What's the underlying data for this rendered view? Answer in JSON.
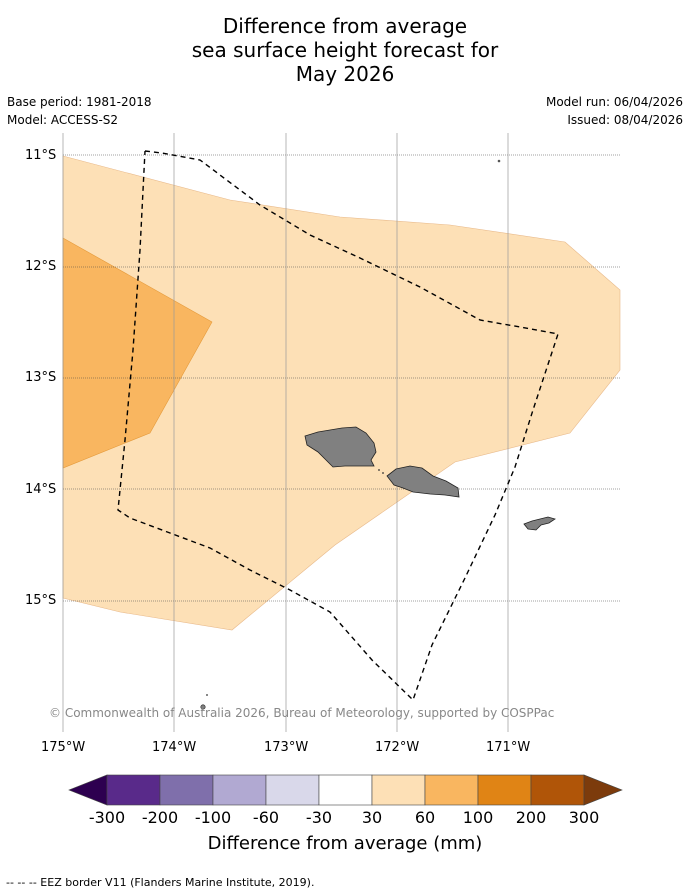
{
  "title": {
    "line1": "Difference from average",
    "line2": "sea surface height forecast for",
    "line3": "May 2026"
  },
  "meta": {
    "base_period": "Base period: 1981-2018",
    "model": "Model: ACCESS-S2",
    "model_run": "Model run: 06/04/2026",
    "issued": "Issued: 08/04/2026"
  },
  "map": {
    "lat_labels": [
      "11°S",
      "12°S",
      "13°S",
      "14°S",
      "15°S"
    ],
    "lon_labels": [
      "175°W",
      "174°W",
      "173°W",
      "172°W",
      "171°W"
    ],
    "copyright": "© Commonwealth of Australia 2026, Bureau of Meteorology, supported by COSPPac",
    "land_color": "#808080",
    "shading": [
      {
        "range": "30 to 60",
        "color": "#fde0b6"
      },
      {
        "range": "60 to 100",
        "color": "#f9b660"
      }
    ]
  },
  "colorbar": {
    "label": "Difference from average (mm)",
    "ticks": [
      "-300",
      "-200",
      "-100",
      "-60",
      "-30",
      "30",
      "60",
      "100",
      "200",
      "300"
    ],
    "colors": [
      "#592a8a",
      "#7f6fab",
      "#b1a9d2",
      "#d9d8ea",
      "#ffffff",
      "#fde0b6",
      "#f9b660",
      "#e08415",
      "#b05508"
    ],
    "low_extend_color": "#2d0050",
    "high_extend_color": "#7c3b0c"
  },
  "footnote": "--  --  -- EEZ border V11 (Flanders Marine Institute, 2019)."
}
